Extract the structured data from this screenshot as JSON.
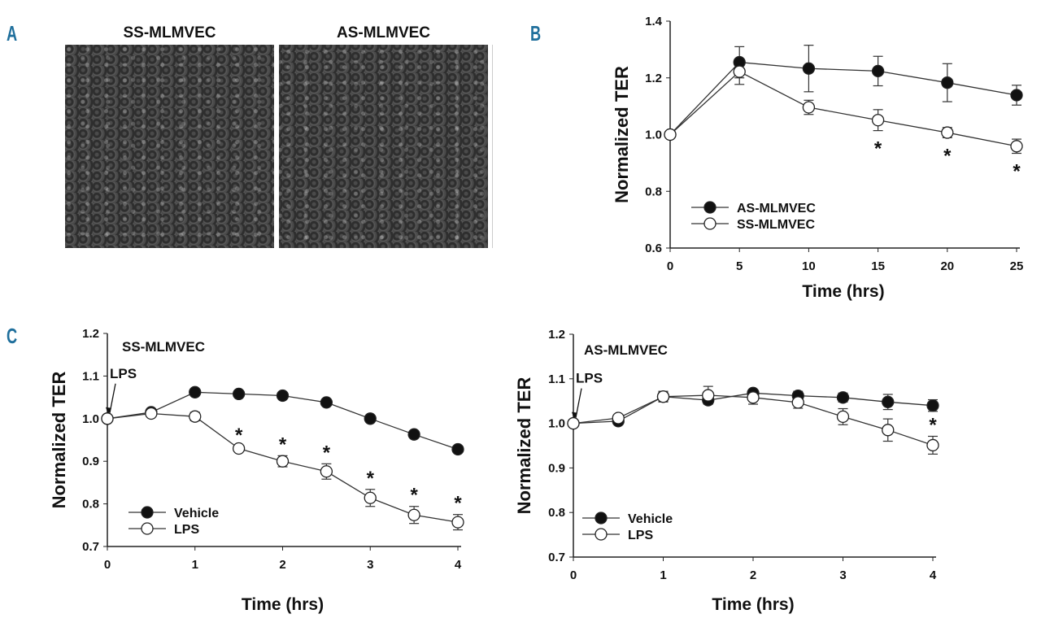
{
  "panels": {
    "a": {
      "label": "A",
      "images": [
        {
          "title": "SS-MLMVEC"
        },
        {
          "title": "AS-MLMVEC"
        }
      ]
    },
    "b": {
      "label": "B"
    },
    "c": {
      "label": "C"
    }
  },
  "colors": {
    "panel_label": "#1f6f9c",
    "ink": "#111111"
  },
  "chart_data": [
    {
      "id": "B",
      "type": "line",
      "title": "",
      "xlabel": "Time (hrs)",
      "ylabel": "Normalized TER",
      "xlim": [
        0,
        25
      ],
      "ylim": [
        0.6,
        1.4
      ],
      "xticks": [
        "0",
        "5",
        "10",
        "15",
        "20",
        "25"
      ],
      "xtick_values": [
        0,
        5,
        10,
        15,
        20,
        25
      ],
      "yticks": [
        "0.6",
        "0.8",
        "1.0",
        "1.2",
        "1.4"
      ],
      "ytick_values": [
        0.6,
        0.8,
        1.0,
        1.2,
        1.4
      ],
      "legend_position": "bottom-left",
      "x": [
        0,
        5,
        10,
        15,
        20,
        25
      ],
      "series": [
        {
          "name": "AS-MLMVEC",
          "marker": "filled",
          "values": [
            1.0,
            1.255,
            1.233,
            1.224,
            1.183,
            1.139
          ],
          "errors": [
            0,
            0.055,
            0.082,
            0.052,
            0.067,
            0.035
          ]
        },
        {
          "name": "SS-MLMVEC",
          "marker": "open",
          "values": [
            1.0,
            1.222,
            1.096,
            1.051,
            1.007,
            0.959
          ],
          "errors": [
            0,
            0.045,
            0.025,
            0.037,
            0.018,
            0.025
          ]
        }
      ],
      "significance": {
        "symbol": "*",
        "series": "SS-MLMVEC",
        "x": [
          15,
          20,
          25
        ]
      }
    },
    {
      "id": "C1",
      "type": "line",
      "title": "SS-MLMVEC",
      "xlabel": "Time (hrs)",
      "ylabel": "Normalized TER",
      "xlim": [
        0,
        4
      ],
      "ylim": [
        0.7,
        1.2
      ],
      "xticks": [
        "0",
        "1",
        "2",
        "3",
        "4"
      ],
      "xtick_values": [
        0,
        1,
        2,
        3,
        4
      ],
      "yticks": [
        "0.7",
        "0.8",
        "0.9",
        "1.0",
        "1.1",
        "1.2"
      ],
      "ytick_values": [
        0.7,
        0.8,
        0.9,
        1.0,
        1.1,
        1.2
      ],
      "legend_position": "bottom-left",
      "annotation": {
        "text": "LPS",
        "x": 0
      },
      "x": [
        0,
        0.5,
        1,
        1.5,
        2,
        2.5,
        3,
        3.5,
        4
      ],
      "series": [
        {
          "name": "Vehicle",
          "marker": "filled",
          "values": [
            1.0,
            1.015,
            1.062,
            1.058,
            1.054,
            1.038,
            1.0,
            0.963,
            0.928
          ],
          "errors": [
            0,
            0.005,
            0.004,
            0.005,
            0.004,
            0.004,
            0.004,
            0.008,
            0.006
          ]
        },
        {
          "name": "LPS",
          "marker": "open",
          "values": [
            1.0,
            1.012,
            1.005,
            0.93,
            0.9,
            0.876,
            0.814,
            0.774,
            0.757
          ],
          "errors": [
            0,
            0.005,
            0.01,
            0.005,
            0.013,
            0.018,
            0.02,
            0.02,
            0.018
          ]
        }
      ],
      "significance": {
        "symbol": "*",
        "series": "LPS",
        "x": [
          1.5,
          2,
          2.5,
          3,
          3.5,
          4
        ]
      }
    },
    {
      "id": "C2",
      "type": "line",
      "title": "AS-MLMVEC",
      "xlabel": "Time (hrs)",
      "ylabel": "Normalized TER",
      "xlim": [
        0,
        4
      ],
      "ylim": [
        0.7,
        1.2
      ],
      "xticks": [
        "0",
        "1",
        "2",
        "3",
        "4"
      ],
      "xtick_values": [
        0,
        1,
        2,
        3,
        4
      ],
      "yticks": [
        "0.7",
        "0.8",
        "0.9",
        "1.0",
        "1.1",
        "1.2"
      ],
      "ytick_values": [
        0.7,
        0.8,
        0.9,
        1.0,
        1.1,
        1.2
      ],
      "legend_position": "bottom-left",
      "annotation": {
        "text": "LPS",
        "x": 0
      },
      "x": [
        0,
        0.5,
        1,
        1.5,
        2,
        2.5,
        3,
        3.5,
        4
      ],
      "series": [
        {
          "name": "Vehicle",
          "marker": "filled",
          "values": [
            1.0,
            1.005,
            1.06,
            1.052,
            1.068,
            1.062,
            1.058,
            1.048,
            1.04
          ],
          "errors": [
            0,
            0.004,
            0.01,
            0.008,
            0.008,
            0.01,
            0.01,
            0.017,
            0.013
          ]
        },
        {
          "name": "LPS",
          "marker": "open",
          "values": [
            1.0,
            1.012,
            1.06,
            1.063,
            1.058,
            1.047,
            1.015,
            0.985,
            0.951
          ],
          "errors": [
            0,
            0.005,
            0.012,
            0.02,
            0.015,
            0.013,
            0.018,
            0.025,
            0.02
          ]
        }
      ],
      "significance": {
        "symbol": "*",
        "series": "LPS",
        "x": [
          4
        ]
      }
    }
  ]
}
